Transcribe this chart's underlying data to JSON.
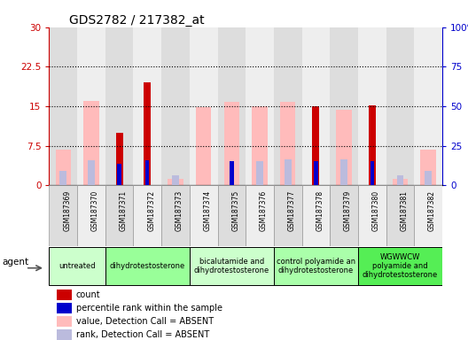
{
  "title": "GDS2782 / 217382_at",
  "samples": [
    "GSM187369",
    "GSM187370",
    "GSM187371",
    "GSM187372",
    "GSM187373",
    "GSM187374",
    "GSM187375",
    "GSM187376",
    "GSM187377",
    "GSM187378",
    "GSM187379",
    "GSM187380",
    "GSM187381",
    "GSM187382"
  ],
  "groups": [
    {
      "label": "untreated",
      "color": "#ccffcc",
      "cols": [
        0,
        1
      ]
    },
    {
      "label": "dihydrotestosterone",
      "color": "#99ff99",
      "cols": [
        2,
        3,
        4
      ]
    },
    {
      "label": "bicalutamide and\ndihydrotestosterone",
      "color": "#ccffcc",
      "cols": [
        5,
        6,
        7
      ]
    },
    {
      "label": "control polyamide an\ndihydrotestosterone",
      "color": "#aaffaa",
      "cols": [
        8,
        9,
        10
      ]
    },
    {
      "label": "WGWWCW\npolyamide and\ndihydrotestosterone",
      "color": "#55ee55",
      "cols": [
        11,
        12,
        13
      ]
    }
  ],
  "count_left": [
    null,
    null,
    10.0,
    19.5,
    null,
    null,
    null,
    null,
    null,
    15.0,
    null,
    15.2,
    null,
    null
  ],
  "rank_right": [
    null,
    null,
    13.5,
    15.8,
    null,
    null,
    15.0,
    null,
    null,
    15.0,
    null,
    15.0,
    null,
    null
  ],
  "value_absent_left": [
    6.8,
    16.0,
    null,
    null,
    1.2,
    14.8,
    15.8,
    15.0,
    15.8,
    null,
    14.4,
    null,
    1.2,
    6.8
  ],
  "rank_absent_right": [
    9.0,
    16.0,
    null,
    null,
    6.5,
    null,
    null,
    15.0,
    16.5,
    null,
    16.5,
    null,
    6.5,
    9.0
  ],
  "ylim_left": [
    0,
    30
  ],
  "ylim_right": [
    0,
    100
  ],
  "yticks_left": [
    0,
    7.5,
    15.0,
    22.5,
    30
  ],
  "yticks_right": [
    0,
    25,
    50,
    75,
    100
  ],
  "ytick_labels_left": [
    "0",
    "7.5",
    "15",
    "22.5",
    "30"
  ],
  "ytick_labels_right": [
    "0",
    "25",
    "50",
    "75",
    "100%"
  ],
  "hlines": [
    7.5,
    15.0,
    22.5
  ],
  "col_count": "#cc0000",
  "col_rank": "#0000cc",
  "col_absent_val": "#ffbbbb",
  "col_absent_rank": "#bbbbdd",
  "left_axis_color": "#cc0000",
  "right_axis_color": "#0000cc",
  "bar_width": 0.55,
  "agent_label": "agent",
  "col_bg_even": "#dddddd",
  "col_bg_odd": "#eeeeee",
  "legend": [
    {
      "color": "#cc0000",
      "text": "count"
    },
    {
      "color": "#0000cc",
      "text": "percentile rank within the sample"
    },
    {
      "color": "#ffbbbb",
      "text": "value, Detection Call = ABSENT"
    },
    {
      "color": "#bbbbdd",
      "text": "rank, Detection Call = ABSENT"
    }
  ]
}
